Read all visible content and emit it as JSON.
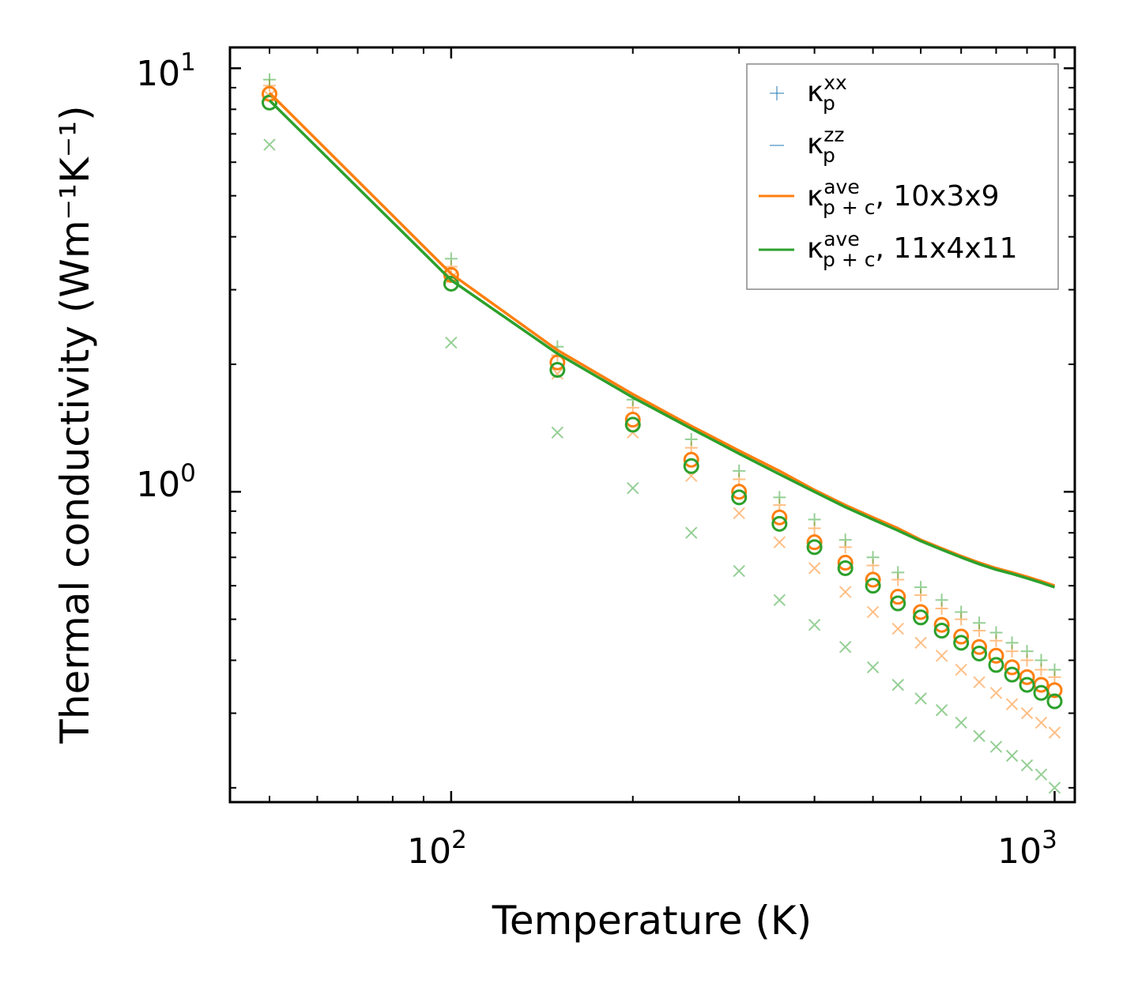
{
  "chart_data": {
    "type": "scatter",
    "xscale": "log",
    "yscale": "log",
    "xlim": [
      43,
      1080
    ],
    "ylim": [
      0.185,
      11.2
    ],
    "xlabel": "Temperature (K)",
    "ylabel": "Thermal conductivity (Wm⁻¹K⁻¹)",
    "xticks": [
      {
        "base": "10",
        "exp": "2"
      },
      {
        "base": "10",
        "exp": "3"
      }
    ],
    "yticks": [
      {
        "base": "10",
        "exp": "0"
      },
      {
        "base": "10",
        "exp": "1"
      }
    ],
    "legend": {
      "position": "top-right",
      "entries": [
        {
          "main": "κ",
          "sup": "xx",
          "sub": "p",
          "suffix": ""
        },
        {
          "main": "κ",
          "sup": "zz",
          "sub": "p",
          "suffix": ""
        },
        {
          "main": "κ",
          "sup": "ave",
          "sub": "p + c",
          "suffix": ", 10x3x9"
        },
        {
          "main": "κ",
          "sup": "ave",
          "sub": "p + c",
          "suffix": ", 11x4x11"
        }
      ]
    },
    "colors": {
      "orange": "#ff7f0e",
      "green": "#2ca02c",
      "blue": "#1f77b4"
    },
    "x": [
      50,
      100,
      150,
      200,
      250,
      300,
      350,
      400,
      450,
      500,
      550,
      600,
      650,
      700,
      750,
      800,
      850,
      900,
      950,
      1000
    ],
    "series": [
      {
        "name": "kp_xx 10x3x9",
        "marker": "plus",
        "color": "#ff7f0e",
        "opacity": 0.5,
        "values": [
          9.1,
          3.4,
          2.1,
          1.58,
          1.27,
          1.07,
          0.93,
          0.82,
          0.74,
          0.67,
          0.62,
          0.57,
          0.53,
          0.5,
          0.47,
          0.445,
          0.42,
          0.4,
          0.38,
          0.365
        ]
      },
      {
        "name": "kp_xx 11x4x11",
        "marker": "plus",
        "color": "#2ca02c",
        "opacity": 0.5,
        "values": [
          9.4,
          3.55,
          2.2,
          1.65,
          1.33,
          1.12,
          0.97,
          0.86,
          0.77,
          0.7,
          0.645,
          0.595,
          0.555,
          0.52,
          0.49,
          0.465,
          0.44,
          0.42,
          0.4,
          0.38
        ]
      },
      {
        "name": "kp_zz 10x3x9",
        "marker": "x",
        "color": "#ff7f0e",
        "opacity": 0.5,
        "values": [
          8.6,
          3.2,
          1.9,
          1.38,
          1.09,
          0.89,
          0.76,
          0.66,
          0.58,
          0.52,
          0.475,
          0.44,
          0.41,
          0.38,
          0.355,
          0.335,
          0.315,
          0.3,
          0.285,
          0.27
        ]
      },
      {
        "name": "kp_zz 11x4x11",
        "marker": "x",
        "color": "#2ca02c",
        "opacity": 0.5,
        "values": [
          6.6,
          2.25,
          1.38,
          1.02,
          0.8,
          0.65,
          0.555,
          0.485,
          0.43,
          0.385,
          0.35,
          0.325,
          0.305,
          0.285,
          0.265,
          0.25,
          0.238,
          0.226,
          0.215,
          0.2
        ]
      },
      {
        "name": "kp_ave 10x3x9",
        "marker": "circle",
        "color": "#ff7f0e",
        "opacity": 1,
        "values": [
          8.7,
          3.25,
          2.02,
          1.48,
          1.19,
          1.0,
          0.87,
          0.76,
          0.68,
          0.62,
          0.565,
          0.52,
          0.485,
          0.455,
          0.43,
          0.41,
          0.385,
          0.365,
          0.35,
          0.34
        ]
      },
      {
        "name": "kp_ave 11x4x11",
        "marker": "circle",
        "color": "#2ca02c",
        "opacity": 1,
        "values": [
          8.3,
          3.1,
          1.94,
          1.44,
          1.15,
          0.97,
          0.84,
          0.74,
          0.66,
          0.6,
          0.545,
          0.505,
          0.47,
          0.44,
          0.415,
          0.39,
          0.37,
          0.35,
          0.335,
          0.32
        ]
      },
      {
        "name": "kp+c_ave 10x3x9",
        "marker": "line",
        "color": "#ff7f0e",
        "opacity": 1,
        "values": [
          8.75,
          3.27,
          2.16,
          1.7,
          1.43,
          1.25,
          1.12,
          1.01,
          0.93,
          0.87,
          0.82,
          0.77,
          0.735,
          0.705,
          0.68,
          0.66,
          0.645,
          0.63,
          0.615,
          0.6
        ]
      },
      {
        "name": "kp+c_ave 11x4x11",
        "marker": "line",
        "color": "#2ca02c",
        "opacity": 1,
        "values": [
          8.4,
          3.16,
          2.12,
          1.67,
          1.41,
          1.23,
          1.1,
          1.0,
          0.92,
          0.86,
          0.81,
          0.765,
          0.73,
          0.7,
          0.675,
          0.655,
          0.64,
          0.625,
          0.61,
          0.595
        ]
      }
    ]
  }
}
